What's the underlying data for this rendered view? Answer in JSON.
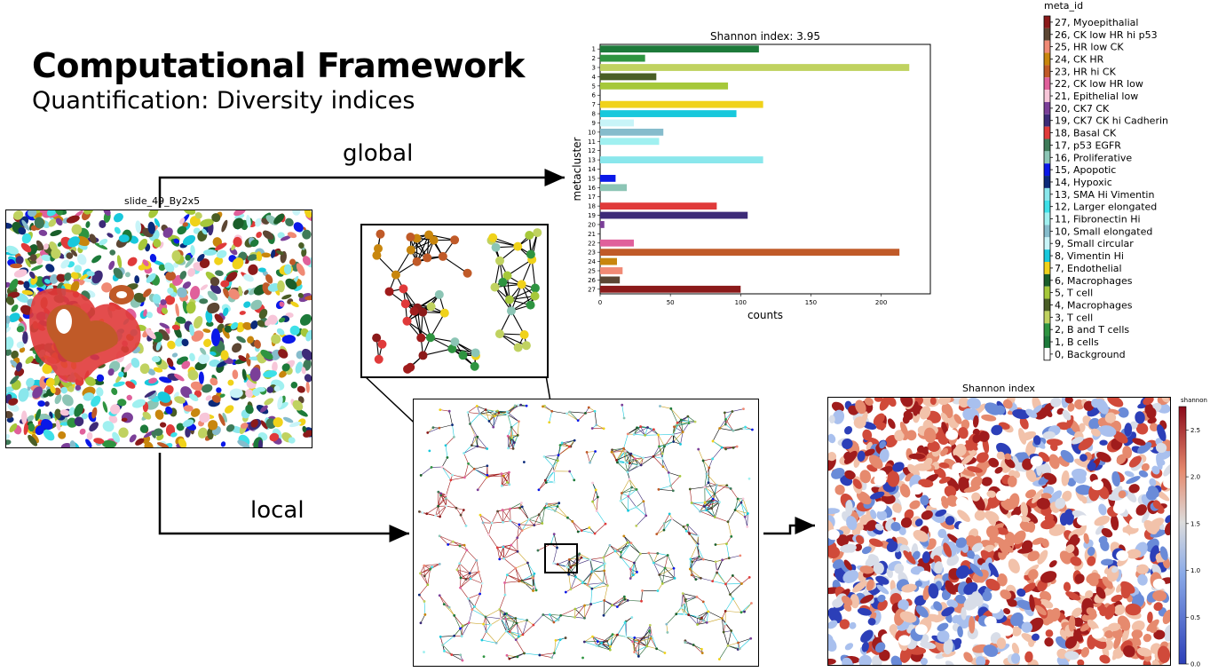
{
  "header": {
    "title": "Computational Framework",
    "subtitle": "Quantification: Diversity indices"
  },
  "flow": {
    "global_label": "global",
    "local_label": "local"
  },
  "panels": {
    "slide_title": "slide_49_By2x5",
    "shannon_map_title": "Shannon index",
    "shannon_colorbar_label": "shannon"
  },
  "legend": {
    "title": "meta_id",
    "items": [
      {
        "label": "27, Myoepithalial",
        "color": "#8b1a1a"
      },
      {
        "label": "26, CK low HR hi p53",
        "color": "#5c4633"
      },
      {
        "label": "25, HR low CK",
        "color": "#f08a75"
      },
      {
        "label": "24, CK HR",
        "color": "#c8860d"
      },
      {
        "label": "23, HR hi CK",
        "color": "#c05a28"
      },
      {
        "label": "22, CK low HR low",
        "color": "#e0609b"
      },
      {
        "label": "21, Epithelial low",
        "color": "#f7c6d9"
      },
      {
        "label": "20, CK7 CK",
        "color": "#7b3f98"
      },
      {
        "label": "19, CK7 CK hi Cadherin",
        "color": "#3d2b78"
      },
      {
        "label": "18, Basal CK",
        "color": "#e03a3a"
      },
      {
        "label": "17, p53 EGFR",
        "color": "#3e7a58"
      },
      {
        "label": "16, Proliferative",
        "color": "#8cc5b5"
      },
      {
        "label": "15, Apopotic",
        "color": "#0a18e8"
      },
      {
        "label": "14, Hypoxic",
        "color": "#0c2a7a"
      },
      {
        "label": "13, SMA Hi Vimentin",
        "color": "#8ae7ec"
      },
      {
        "label": "12, Larger elongated",
        "color": "#3ee0e8"
      },
      {
        "label": "11, Fibronectin Hi",
        "color": "#a0f0f0"
      },
      {
        "label": "10, Small elongated",
        "color": "#86bccc"
      },
      {
        "label": "9, Small circular",
        "color": "#c8f4f8"
      },
      {
        "label": "8, Vimentin Hi",
        "color": "#18c8dc"
      },
      {
        "label": "7, Endothelial",
        "color": "#f0d21a"
      },
      {
        "label": "6, Macrophages",
        "color": "#1a5e2a"
      },
      {
        "label": "5, T cell",
        "color": "#a6c83a"
      },
      {
        "label": "4, Macrophages",
        "color": "#4a5e26"
      },
      {
        "label": "3, T cell",
        "color": "#c0d260"
      },
      {
        "label": "2, B and T cells",
        "color": "#2e9440"
      },
      {
        "label": "1, B cells",
        "color": "#1d7a3a"
      },
      {
        "label": "0, Background",
        "color": "#ffffff"
      }
    ]
  },
  "chart_data": [
    {
      "type": "bar",
      "orientation": "horizontal",
      "title": "Shannon index: 3.95",
      "xlabel": "counts",
      "ylabel": "metacluster",
      "categories": [
        "1",
        "2",
        "3",
        "4",
        "5",
        "6",
        "7",
        "8",
        "9",
        "10",
        "11",
        "12",
        "13",
        "14",
        "15",
        "16",
        "17",
        "18",
        "19",
        "20",
        "21",
        "22",
        "23",
        "24",
        "25",
        "26",
        "27"
      ],
      "values": [
        113,
        32,
        220,
        40,
        91,
        0,
        116,
        97,
        24,
        45,
        42,
        0,
        116,
        0,
        11,
        19,
        0,
        83,
        105,
        3,
        0,
        24,
        213,
        12,
        16,
        14,
        100
      ],
      "colors": [
        "#1d7a3a",
        "#2e9440",
        "#c0d260",
        "#4a5e26",
        "#a6c83a",
        "#1a5e2a",
        "#f0d21a",
        "#18c8dc",
        "#c8f4f8",
        "#86bccc",
        "#a0f0f0",
        "#3ee0e8",
        "#8ae7ec",
        "#0c2a7a",
        "#0a18e8",
        "#8cc5b5",
        "#3e7a58",
        "#e03a3a",
        "#3d2b78",
        "#7b3f98",
        "#f7c6d9",
        "#e0609b",
        "#c05a28",
        "#c8860d",
        "#f08a75",
        "#5c4633",
        "#8b1a1a"
      ],
      "xticks": [
        "0",
        "50",
        "100",
        "150",
        "200"
      ],
      "xlim": [
        0,
        235
      ]
    },
    {
      "type": "heatmap",
      "title": "Shannon index",
      "colorbar_label": "shannon",
      "colorbar_ticks": [
        "0.0",
        "0.5",
        "1.0",
        "1.5",
        "2.0",
        "2.5"
      ],
      "range": [
        0,
        2.75
      ]
    }
  ]
}
